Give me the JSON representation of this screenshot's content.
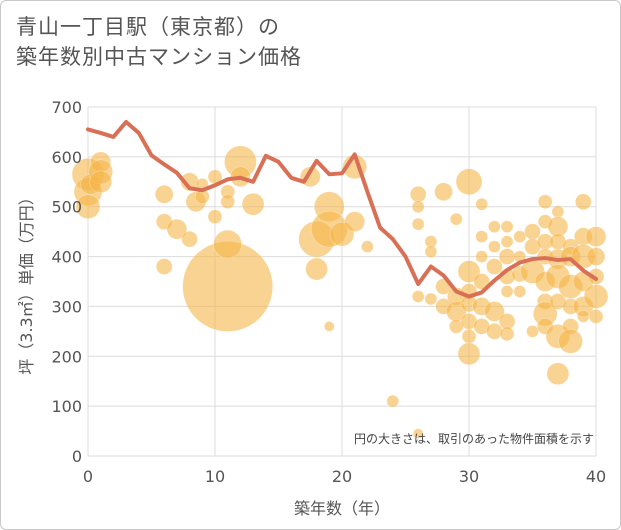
{
  "title": {
    "line1": "青山一丁目駅（東京都）の",
    "line2": "築年数別中古マンション価格"
  },
  "colors": {
    "bubble": "#f5b54a",
    "line": "#d97055",
    "grid": "#dcdcdc"
  },
  "chart_data": {
    "type": "scatter",
    "xlabel": "築年数（年）",
    "ylabel": "坪（3.3㎡）単価（万円）",
    "xlim": [
      0,
      40
    ],
    "ylim": [
      0,
      700
    ],
    "xticks": [
      "0",
      "10",
      "20",
      "30",
      "40"
    ],
    "yticks": [
      "0",
      "100",
      "200",
      "300",
      "400",
      "500",
      "600",
      "700"
    ],
    "note": "円の大きさは、取引のあった物件面積を示す",
    "points": [
      {
        "x": 0,
        "y": 565,
        "s": 16
      },
      {
        "x": 0,
        "y": 530,
        "s": 14
      },
      {
        "x": 0,
        "y": 500,
        "s": 12
      },
      {
        "x": 0.2,
        "y": 545,
        "s": 10
      },
      {
        "x": 1,
        "y": 590,
        "s": 10
      },
      {
        "x": 1,
        "y": 570,
        "s": 12
      },
      {
        "x": 1,
        "y": 550,
        "s": 11
      },
      {
        "x": 6,
        "y": 525,
        "s": 9
      },
      {
        "x": 6,
        "y": 470,
        "s": 8
      },
      {
        "x": 6,
        "y": 380,
        "s": 8
      },
      {
        "x": 7,
        "y": 455,
        "s": 10
      },
      {
        "x": 8,
        "y": 550,
        "s": 9
      },
      {
        "x": 8,
        "y": 435,
        "s": 8
      },
      {
        "x": 8.5,
        "y": 510,
        "s": 10
      },
      {
        "x": 9,
        "y": 545,
        "s": 6
      },
      {
        "x": 9,
        "y": 520,
        "s": 7
      },
      {
        "x": 10,
        "y": 560,
        "s": 7
      },
      {
        "x": 10,
        "y": 480,
        "s": 7
      },
      {
        "x": 11,
        "y": 340,
        "s": 45
      },
      {
        "x": 11,
        "y": 425,
        "s": 14
      },
      {
        "x": 11,
        "y": 530,
        "s": 7
      },
      {
        "x": 11,
        "y": 510,
        "s": 7
      },
      {
        "x": 12,
        "y": 590,
        "s": 16
      },
      {
        "x": 12,
        "y": 560,
        "s": 10
      },
      {
        "x": 13,
        "y": 505,
        "s": 11
      },
      {
        "x": 17.5,
        "y": 560,
        "s": 10
      },
      {
        "x": 18,
        "y": 435,
        "s": 18
      },
      {
        "x": 18,
        "y": 375,
        "s": 11
      },
      {
        "x": 19,
        "y": 500,
        "s": 15
      },
      {
        "x": 19,
        "y": 455,
        "s": 18
      },
      {
        "x": 19,
        "y": 260,
        "s": 5
      },
      {
        "x": 20,
        "y": 445,
        "s": 12
      },
      {
        "x": 21,
        "y": 580,
        "s": 12
      },
      {
        "x": 21,
        "y": 470,
        "s": 10
      },
      {
        "x": 22,
        "y": 420,
        "s": 6
      },
      {
        "x": 24,
        "y": 110,
        "s": 6
      },
      {
        "x": 26,
        "y": 45,
        "s": 5
      },
      {
        "x": 26,
        "y": 525,
        "s": 8
      },
      {
        "x": 26,
        "y": 500,
        "s": 6
      },
      {
        "x": 26,
        "y": 465,
        "s": 6
      },
      {
        "x": 26,
        "y": 320,
        "s": 6
      },
      {
        "x": 27,
        "y": 430,
        "s": 6
      },
      {
        "x": 27,
        "y": 410,
        "s": 6
      },
      {
        "x": 27,
        "y": 315,
        "s": 6
      },
      {
        "x": 28,
        "y": 530,
        "s": 9
      },
      {
        "x": 28,
        "y": 340,
        "s": 8
      },
      {
        "x": 28,
        "y": 300,
        "s": 8
      },
      {
        "x": 29,
        "y": 475,
        "s": 6
      },
      {
        "x": 29,
        "y": 320,
        "s": 9
      },
      {
        "x": 29,
        "y": 290,
        "s": 10
      },
      {
        "x": 29,
        "y": 260,
        "s": 7
      },
      {
        "x": 30,
        "y": 550,
        "s": 13
      },
      {
        "x": 30,
        "y": 370,
        "s": 11
      },
      {
        "x": 30,
        "y": 330,
        "s": 8
      },
      {
        "x": 30,
        "y": 305,
        "s": 8
      },
      {
        "x": 30,
        "y": 270,
        "s": 8
      },
      {
        "x": 30,
        "y": 240,
        "s": 7
      },
      {
        "x": 30,
        "y": 205,
        "s": 11
      },
      {
        "x": 31,
        "y": 505,
        "s": 6
      },
      {
        "x": 31,
        "y": 440,
        "s": 6
      },
      {
        "x": 31,
        "y": 400,
        "s": 6
      },
      {
        "x": 31,
        "y": 350,
        "s": 8
      },
      {
        "x": 31,
        "y": 300,
        "s": 9
      },
      {
        "x": 31,
        "y": 260,
        "s": 8
      },
      {
        "x": 32,
        "y": 460,
        "s": 6
      },
      {
        "x": 32,
        "y": 420,
        "s": 6
      },
      {
        "x": 32,
        "y": 380,
        "s": 8
      },
      {
        "x": 32,
        "y": 290,
        "s": 10
      },
      {
        "x": 32,
        "y": 250,
        "s": 8
      },
      {
        "x": 33,
        "y": 460,
        "s": 6
      },
      {
        "x": 33,
        "y": 430,
        "s": 6
      },
      {
        "x": 33,
        "y": 400,
        "s": 8
      },
      {
        "x": 33,
        "y": 360,
        "s": 8
      },
      {
        "x": 33,
        "y": 330,
        "s": 6
      },
      {
        "x": 33,
        "y": 270,
        "s": 8
      },
      {
        "x": 33,
        "y": 245,
        "s": 7
      },
      {
        "x": 34,
        "y": 440,
        "s": 6
      },
      {
        "x": 34,
        "y": 400,
        "s": 6
      },
      {
        "x": 34,
        "y": 365,
        "s": 8
      },
      {
        "x": 34,
        "y": 330,
        "s": 6
      },
      {
        "x": 35,
        "y": 450,
        "s": 8
      },
      {
        "x": 35,
        "y": 420,
        "s": 8
      },
      {
        "x": 35,
        "y": 370,
        "s": 12
      },
      {
        "x": 35,
        "y": 250,
        "s": 6
      },
      {
        "x": 36,
        "y": 510,
        "s": 7
      },
      {
        "x": 36,
        "y": 470,
        "s": 7
      },
      {
        "x": 36,
        "y": 430,
        "s": 8
      },
      {
        "x": 36,
        "y": 400,
        "s": 8
      },
      {
        "x": 36,
        "y": 350,
        "s": 10
      },
      {
        "x": 36,
        "y": 310,
        "s": 8
      },
      {
        "x": 36,
        "y": 285,
        "s": 12
      },
      {
        "x": 36,
        "y": 260,
        "s": 8
      },
      {
        "x": 37,
        "y": 490,
        "s": 6
      },
      {
        "x": 37,
        "y": 460,
        "s": 10
      },
      {
        "x": 37,
        "y": 430,
        "s": 8
      },
      {
        "x": 37,
        "y": 395,
        "s": 10
      },
      {
        "x": 37,
        "y": 360,
        "s": 12
      },
      {
        "x": 37,
        "y": 310,
        "s": 8
      },
      {
        "x": 37,
        "y": 240,
        "s": 12
      },
      {
        "x": 37,
        "y": 165,
        "s": 11
      },
      {
        "x": 38,
        "y": 420,
        "s": 8
      },
      {
        "x": 38,
        "y": 400,
        "s": 10
      },
      {
        "x": 38,
        "y": 340,
        "s": 12
      },
      {
        "x": 38,
        "y": 300,
        "s": 8
      },
      {
        "x": 38,
        "y": 260,
        "s": 8
      },
      {
        "x": 38,
        "y": 230,
        "s": 12
      },
      {
        "x": 39,
        "y": 510,
        "s": 8
      },
      {
        "x": 39,
        "y": 440,
        "s": 9
      },
      {
        "x": 39,
        "y": 400,
        "s": 12
      },
      {
        "x": 39,
        "y": 350,
        "s": 10
      },
      {
        "x": 39,
        "y": 300,
        "s": 10
      },
      {
        "x": 39,
        "y": 280,
        "s": 6
      },
      {
        "x": 40,
        "y": 440,
        "s": 10
      },
      {
        "x": 40,
        "y": 400,
        "s": 9
      },
      {
        "x": 40,
        "y": 360,
        "s": 8
      },
      {
        "x": 40,
        "y": 320,
        "s": 12
      },
      {
        "x": 40,
        "y": 280,
        "s": 7
      }
    ],
    "line": {
      "x": [
        0,
        1,
        2,
        3,
        4,
        5,
        6,
        7,
        8,
        9,
        10,
        11,
        12,
        13,
        14,
        15,
        16,
        17,
        18,
        19,
        20,
        21,
        22,
        23,
        24,
        25,
        26,
        27,
        28,
        29,
        30,
        31,
        32,
        33,
        34,
        35,
        36,
        37,
        38,
        39,
        40
      ],
      "y": [
        655,
        648,
        640,
        670,
        648,
        603,
        585,
        568,
        537,
        533,
        543,
        555,
        558,
        550,
        602,
        590,
        558,
        550,
        592,
        565,
        567,
        605,
        530,
        458,
        435,
        400,
        345,
        380,
        362,
        330,
        320,
        328,
        352,
        373,
        388,
        395,
        397,
        393,
        395,
        372,
        355
      ]
    }
  }
}
